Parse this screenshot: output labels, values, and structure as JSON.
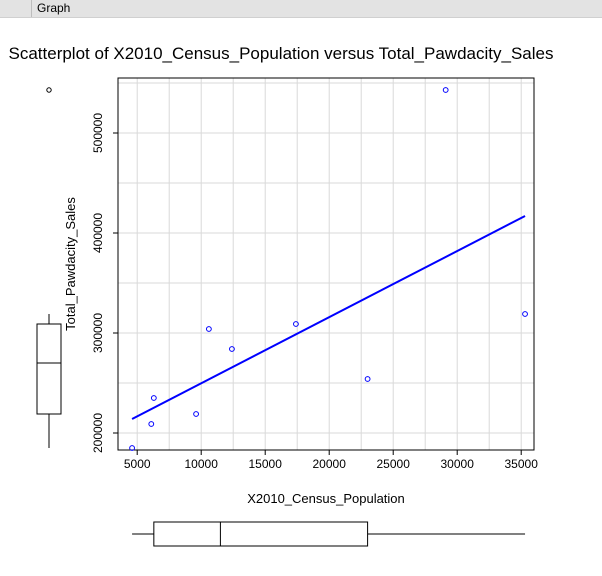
{
  "tab": {
    "label": "Graph"
  },
  "chart_data": {
    "type": "scatter",
    "title": "Scatterplot of X2010_Census_Population versus Total_Pawdacity_Sales",
    "xlabel": "X2010_Census_Population",
    "ylabel": "Total_Pawdacity_Sales",
    "xlim": [
      3500,
      36000
    ],
    "ylim": [
      183000,
      555000
    ],
    "x_ticks": [
      5000,
      10000,
      15000,
      20000,
      25000,
      30000,
      35000
    ],
    "y_ticks": [
      200000,
      300000,
      400000,
      500000
    ],
    "x_tick_labels": [
      "5000",
      "10000",
      "15000",
      "20000",
      "25000",
      "30000",
      "35000"
    ],
    "y_tick_labels": [
      "200000",
      "300000",
      "400000",
      "500000"
    ],
    "grid": true,
    "point_color": "#0000ff",
    "line_color": "#0000ff",
    "points": [
      {
        "x": 4600,
        "y": 185000
      },
      {
        "x": 6100,
        "y": 209000
      },
      {
        "x": 6300,
        "y": 235000
      },
      {
        "x": 9600,
        "y": 219000
      },
      {
        "x": 10600,
        "y": 304000
      },
      {
        "x": 12400,
        "y": 284000
      },
      {
        "x": 17400,
        "y": 309000
      },
      {
        "x": 23000,
        "y": 254000
      },
      {
        "x": 29100,
        "y": 543000
      },
      {
        "x": 35300,
        "y": 319000
      }
    ],
    "regression_line": {
      "x": [
        4600,
        35300
      ],
      "y": [
        214000,
        417000
      ]
    },
    "x_boxplot": {
      "min": 4600,
      "q1": 6300,
      "median": 11500,
      "q3": 23000,
      "max": 35300
    },
    "y_boxplot": {
      "min": 185000,
      "q1": 219000,
      "median": 270000,
      "q3": 309000,
      "max": 319000,
      "outliers": [
        543000
      ]
    }
  }
}
